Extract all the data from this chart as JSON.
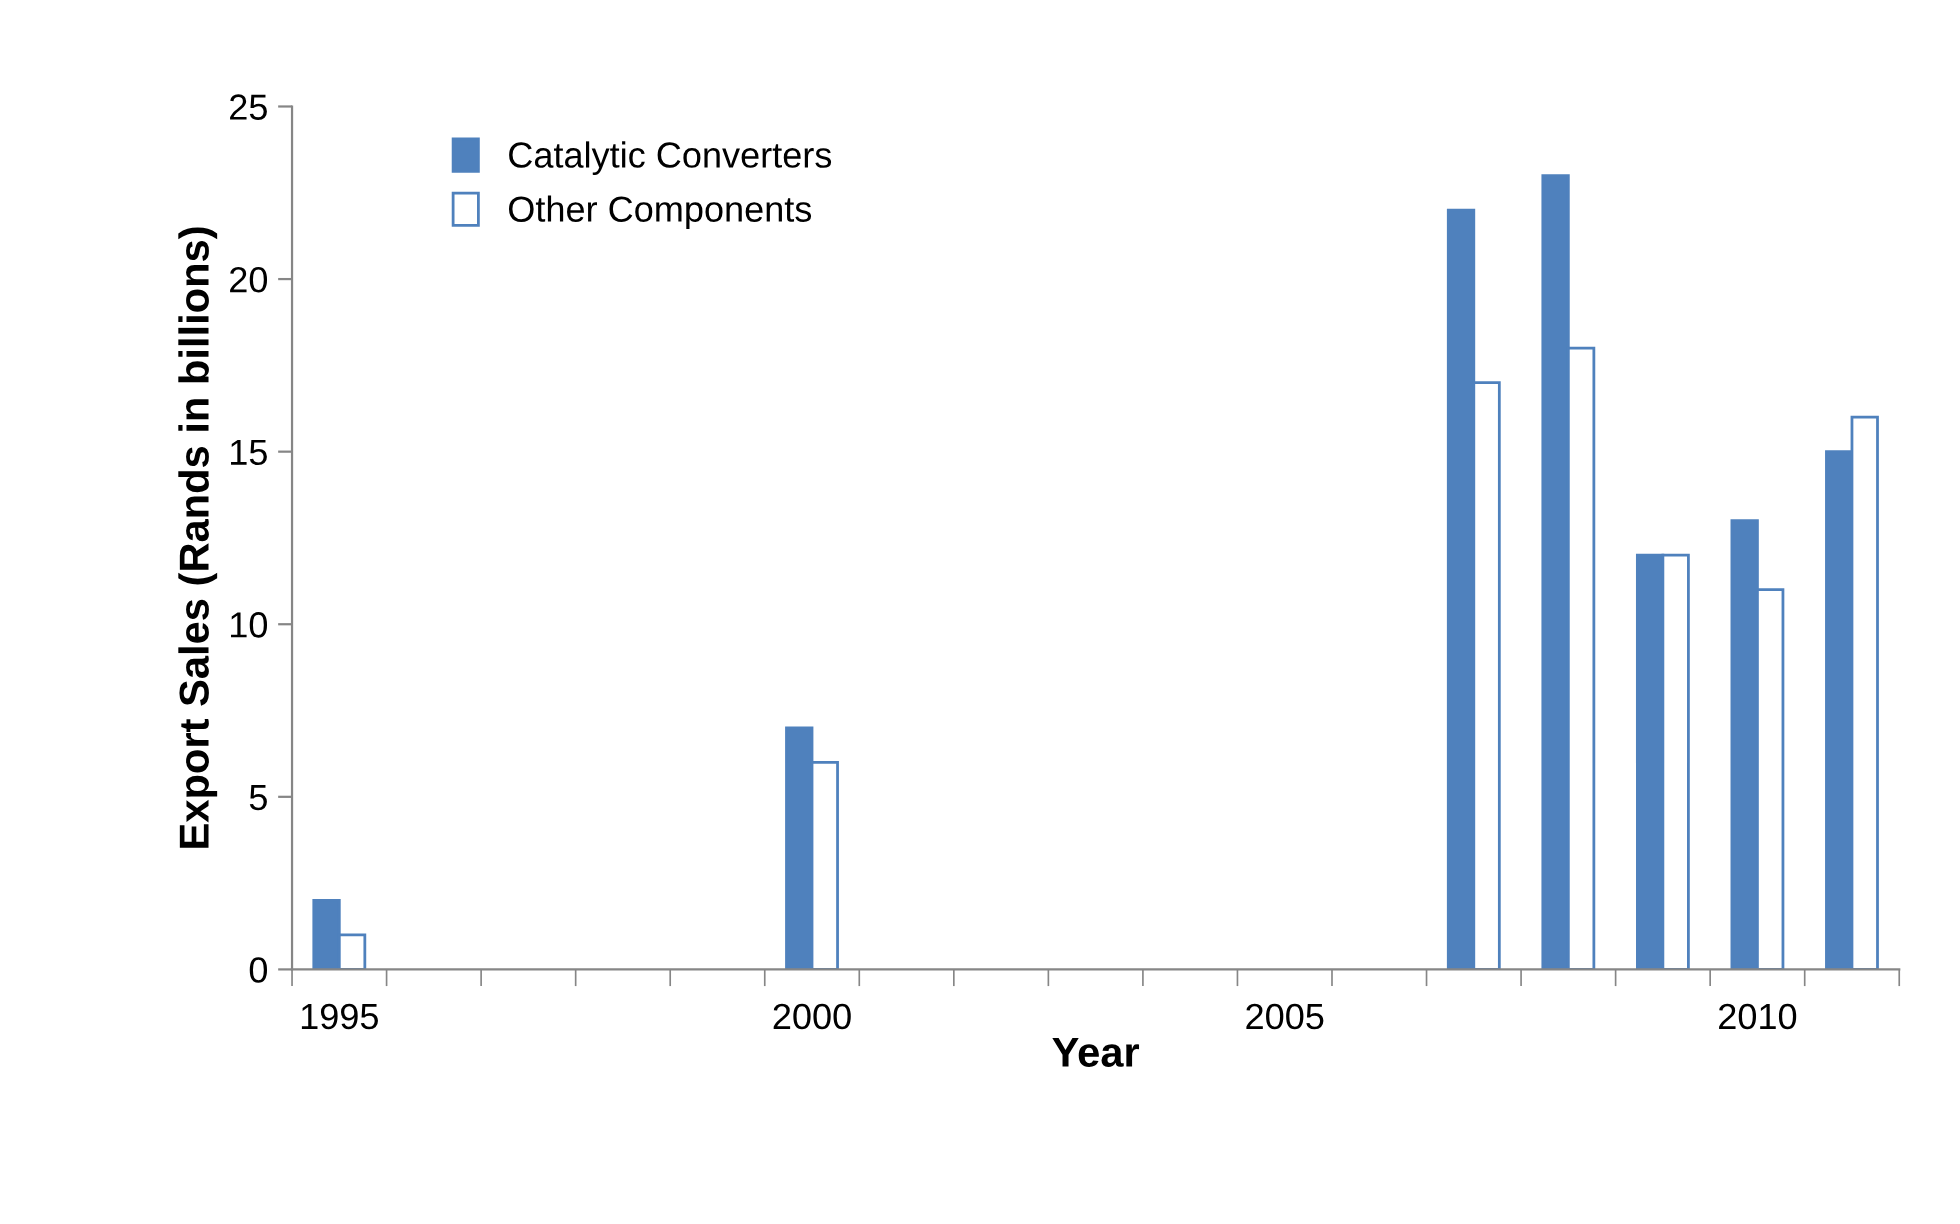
{
  "chart_data": {
    "type": "bar",
    "xlabel": "Year",
    "ylabel": "Export Sales (Rands in billions)",
    "categories": [
      "1995",
      null,
      null,
      null,
      null,
      "2000",
      null,
      null,
      null,
      null,
      "2005",
      null,
      null,
      null,
      null,
      "2010",
      null
    ],
    "series": [
      {
        "name": "Catalytic Converters",
        "color": "#4f81bd",
        "values": [
          2,
          null,
          null,
          null,
          null,
          7,
          null,
          null,
          null,
          null,
          null,
          null,
          22,
          23,
          12,
          13,
          15
        ]
      },
      {
        "name": "Other Components",
        "color": "#ffffff",
        "values": [
          1,
          null,
          null,
          null,
          null,
          6,
          null,
          null,
          null,
          null,
          null,
          null,
          17,
          18,
          12,
          11,
          16
        ]
      }
    ],
    "ylim": [
      0,
      25
    ],
    "yticks": [
      0,
      5,
      10,
      15,
      20,
      25
    ],
    "grid": false,
    "legend": "top left"
  }
}
